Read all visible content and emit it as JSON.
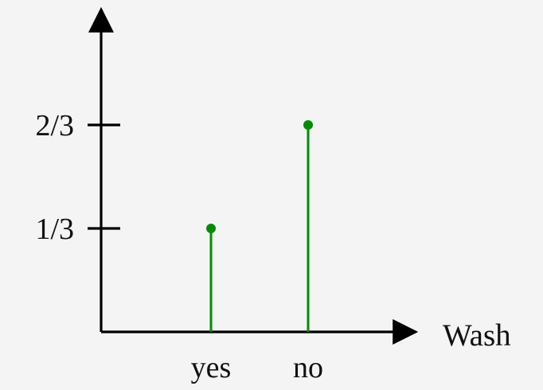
{
  "chart_data": {
    "type": "stem",
    "title": "",
    "xlabel": "Wash",
    "ylabel": "",
    "categories": [
      "yes",
      "no"
    ],
    "values": [
      0.3333,
      0.6667
    ],
    "ylim": [
      0,
      1
    ],
    "yticks": [
      {
        "value": 0.3333,
        "label": "1/3"
      },
      {
        "value": 0.6667,
        "label": "2/3"
      }
    ],
    "series": [
      {
        "values": [
          0.3333,
          0.6667
        ],
        "color": "#008f00"
      }
    ],
    "grid": false,
    "legend": "none"
  }
}
